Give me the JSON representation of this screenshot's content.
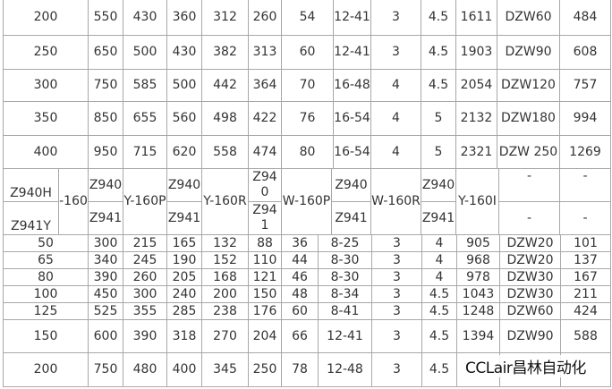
{
  "top_rows": [
    [
      "200",
      "550",
      "430",
      "360",
      "312",
      "260",
      "54",
      "12-41",
      "3",
      "4.5",
      "1611",
      "DZW60",
      "484"
    ],
    [
      "250",
      "650",
      "500",
      "430",
      "382",
      "313",
      "60",
      "12-41",
      "3",
      "4.5",
      "1903",
      "DZW90",
      "608"
    ],
    [
      "300",
      "750",
      "585",
      "500",
      "442",
      "364",
      "70",
      "16-48",
      "4",
      "4.5",
      "2054",
      "DZW120",
      "757"
    ],
    [
      "350",
      "850",
      "655",
      "560",
      "498",
      "422",
      "76",
      "16-54",
      "4",
      "5",
      "2132",
      "DZW180",
      "994"
    ],
    [
      "400",
      "950",
      "715",
      "620",
      "558",
      "474",
      "80",
      "16-54",
      "4",
      "5",
      "2321",
      "DZW 250",
      "1269"
    ]
  ],
  "header": {
    "model_a": "Z940H",
    "model_b": "Z941Y",
    "pn": "-160",
    "z940": "Z940",
    "z941": "Z941",
    "y160p": "Y-160P",
    "y160r": "Y-160R",
    "w160p": "W-160P",
    "w160r": "W-160R",
    "y160i": "Y-160I",
    "dash": "-"
  },
  "bottom_rows": [
    [
      "50",
      "300",
      "215",
      "165",
      "132",
      "88",
      "36",
      "8-25",
      "3",
      "4",
      "905",
      "DZW20",
      "101"
    ],
    [
      "65",
      "340",
      "245",
      "190",
      "152",
      "110",
      "44",
      "8-30",
      "3",
      "4",
      "968",
      "DZW20",
      "137"
    ],
    [
      "80",
      "390",
      "260",
      "205",
      "168",
      "121",
      "46",
      "8-30",
      "3",
      "4",
      "978",
      "DZW30",
      "167"
    ],
    [
      "100",
      "450",
      "300",
      "240",
      "200",
      "150",
      "48",
      "8-34",
      "3",
      "4.5",
      "1043",
      "DZW30",
      "211"
    ],
    [
      "125",
      "525",
      "355",
      "285",
      "238",
      "176",
      "60",
      "8-41",
      "3",
      "4.5",
      "1248",
      "DZW60",
      "424"
    ],
    [
      "150",
      "600",
      "390",
      "318",
      "270",
      "204",
      "66",
      "12-41",
      "3",
      "4.5",
      "1394",
      "DZW90",
      "588"
    ],
    [
      "200",
      "750",
      "480",
      "400",
      "345",
      "250",
      "78",
      "12-48",
      "3",
      "4.5",
      "",
      "",
      ""
    ]
  ],
  "watermark": "CCLair昌林自动化",
  "colors": {
    "border": "#a8a8a8",
    "text": "#333333"
  }
}
